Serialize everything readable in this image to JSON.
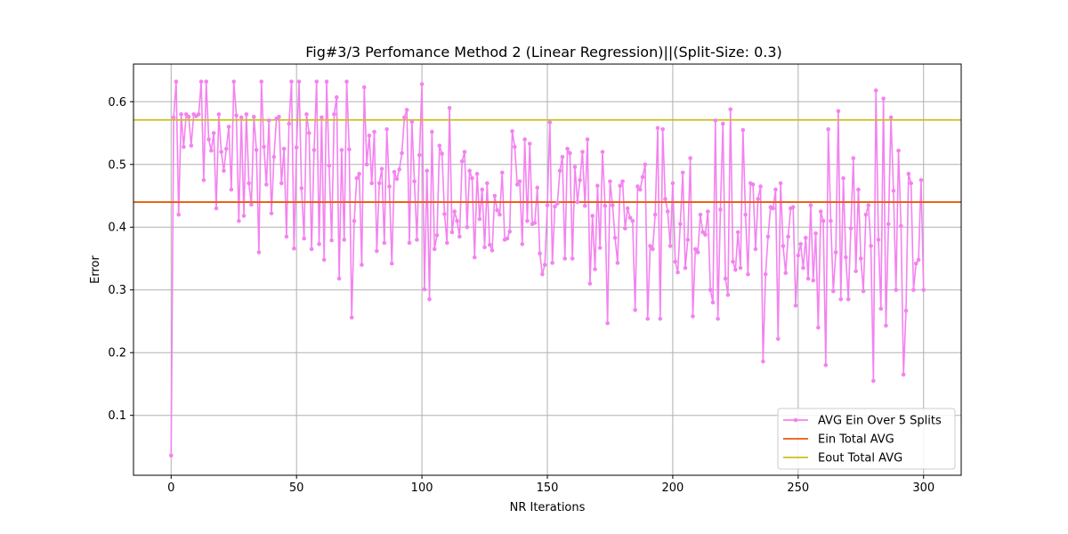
{
  "chart_data": {
    "type": "line",
    "title": "Fig#3/3 Perfomance Method 2 (Linear Regression)||(Split-Size: 0.3)",
    "xlabel": "NR Iterations",
    "ylabel": "Error",
    "xlim": [
      -15,
      315
    ],
    "ylim": [
      0.0045,
      0.66
    ],
    "xticks": [
      0,
      50,
      100,
      150,
      200,
      250,
      300
    ],
    "yticks": [
      0.1,
      0.2,
      0.3,
      0.4,
      0.5,
      0.6
    ],
    "grid": true,
    "legend_position": "lower-right",
    "series": [
      {
        "name": "AVG Ein Over 5 Splits",
        "color": "#f482f0",
        "marker": "dot",
        "x_start": 0,
        "x_step": 1,
        "y": [
          0.036,
          0.575,
          0.632,
          0.42,
          0.58,
          0.528,
          0.58,
          0.576,
          0.53,
          0.58,
          0.577,
          0.58,
          0.632,
          0.475,
          0.632,
          0.54,
          0.522,
          0.55,
          0.43,
          0.58,
          0.52,
          0.49,
          0.525,
          0.56,
          0.46,
          0.632,
          0.578,
          0.41,
          0.575,
          0.418,
          0.58,
          0.47,
          0.436,
          0.576,
          0.523,
          0.36,
          0.632,
          0.528,
          0.468,
          0.57,
          0.422,
          0.512,
          0.573,
          0.576,
          0.47,
          0.525,
          0.385,
          0.565,
          0.632,
          0.366,
          0.527,
          0.632,
          0.462,
          0.382,
          0.58,
          0.55,
          0.365,
          0.523,
          0.632,
          0.373,
          0.575,
          0.348,
          0.632,
          0.498,
          0.379,
          0.58,
          0.607,
          0.318,
          0.523,
          0.38,
          0.632,
          0.524,
          0.256,
          0.41,
          0.478,
          0.485,
          0.34,
          0.623,
          0.5,
          0.546,
          0.47,
          0.552,
          0.362,
          0.47,
          0.493,
          0.375,
          0.556,
          0.465,
          0.342,
          0.488,
          0.477,
          0.492,
          0.518,
          0.575,
          0.587,
          0.375,
          0.568,
          0.473,
          0.38,
          0.515,
          0.628,
          0.301,
          0.49,
          0.285,
          0.552,
          0.365,
          0.387,
          0.53,
          0.517,
          0.421,
          0.375,
          0.59,
          0.392,
          0.425,
          0.41,
          0.385,
          0.505,
          0.52,
          0.4,
          0.49,
          0.478,
          0.352,
          0.485,
          0.413,
          0.46,
          0.368,
          0.47,
          0.372,
          0.363,
          0.45,
          0.427,
          0.42,
          0.487,
          0.38,
          0.382,
          0.393,
          0.553,
          0.528,
          0.468,
          0.473,
          0.373,
          0.54,
          0.41,
          0.533,
          0.405,
          0.407,
          0.463,
          0.358,
          0.325,
          0.34,
          0.435,
          0.567,
          0.343,
          0.433,
          0.438,
          0.49,
          0.512,
          0.35,
          0.525,
          0.518,
          0.35,
          0.496,
          0.44,
          0.475,
          0.52,
          0.434,
          0.54,
          0.31,
          0.418,
          0.333,
          0.466,
          0.367,
          0.52,
          0.434,
          0.247,
          0.473,
          0.435,
          0.383,
          0.343,
          0.466,
          0.473,
          0.398,
          0.43,
          0.415,
          0.41,
          0.268,
          0.465,
          0.46,
          0.48,
          0.5,
          0.254,
          0.37,
          0.365,
          0.42,
          0.558,
          0.254,
          0.556,
          0.445,
          0.425,
          0.37,
          0.47,
          0.345,
          0.328,
          0.405,
          0.487,
          0.335,
          0.38,
          0.51,
          0.258,
          0.365,
          0.36,
          0.42,
          0.392,
          0.388,
          0.425,
          0.3,
          0.28,
          0.57,
          0.254,
          0.428,
          0.565,
          0.318,
          0.292,
          0.588,
          0.345,
          0.332,
          0.392,
          0.335,
          0.555,
          0.42,
          0.325,
          0.47,
          0.468,
          0.365,
          0.445,
          0.465,
          0.186,
          0.325,
          0.385,
          0.432,
          0.43,
          0.46,
          0.222,
          0.47,
          0.37,
          0.327,
          0.385,
          0.43,
          0.432,
          0.275,
          0.355,
          0.373,
          0.335,
          0.383,
          0.318,
          0.435,
          0.315,
          0.39,
          0.24,
          0.425,
          0.41,
          0.18,
          0.556,
          0.41,
          0.298,
          0.36,
          0.585,
          0.285,
          0.478,
          0.352,
          0.285,
          0.398,
          0.51,
          0.33,
          0.46,
          0.35,
          0.298,
          0.42,
          0.435,
          0.37,
          0.155,
          0.618,
          0.38,
          0.27,
          0.605,
          0.243,
          0.405,
          0.575,
          0.458,
          0.3,
          0.522,
          0.402,
          0.165,
          0.267,
          0.485,
          0.47,
          0.3,
          0.342,
          0.348,
          0.475,
          0.3
        ]
      },
      {
        "name": "Ein Total AVG",
        "color": "#e8590c",
        "y_constant": 0.44
      },
      {
        "name": "Eout Total AVG",
        "color": "#c9c01a",
        "y_constant": 0.571
      }
    ]
  }
}
